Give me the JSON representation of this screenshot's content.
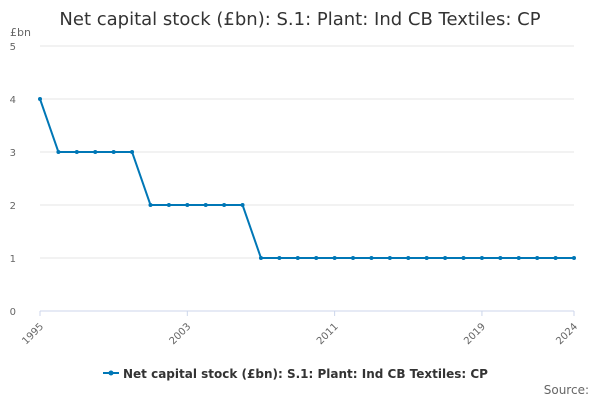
{
  "chart_data": {
    "type": "line",
    "title": "Net capital stock (£bn): S.1: Plant: Ind CB Textiles: CP",
    "ylabel": "£bn",
    "xlabel": "",
    "ylim": [
      0,
      5
    ],
    "yticks": [
      0,
      1,
      2,
      3,
      4,
      5
    ],
    "xlim": [
      1995,
      2024
    ],
    "xticks": [
      1995,
      2003,
      2011,
      2019,
      2024
    ],
    "grid": true,
    "legend_position": "bottom",
    "series": [
      {
        "name": "Net capital stock (£bn): S.1: Plant: Ind CB Textiles: CP",
        "color": "#0077b6",
        "x": [
          1995,
          1996,
          1997,
          1998,
          1999,
          2000,
          2001,
          2002,
          2003,
          2004,
          2005,
          2006,
          2007,
          2008,
          2009,
          2010,
          2011,
          2012,
          2013,
          2014,
          2015,
          2016,
          2017,
          2018,
          2019,
          2020,
          2021,
          2022,
          2023,
          2024
        ],
        "values": [
          4,
          3,
          3,
          3,
          3,
          3,
          2,
          2,
          2,
          2,
          2,
          2,
          1,
          1,
          1,
          1,
          1,
          1,
          1,
          1,
          1,
          1,
          1,
          1,
          1,
          1,
          1,
          1,
          1,
          1
        ]
      }
    ]
  },
  "source_label": "Source:"
}
